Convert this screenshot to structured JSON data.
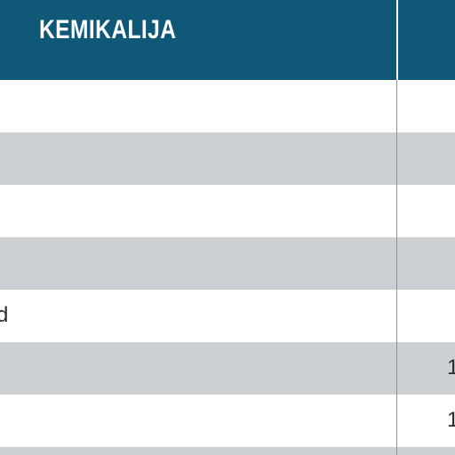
{
  "header": {
    "title": "KEMIKALIJA"
  },
  "colors": {
    "header_bg": "#0f5878",
    "row_white": "#ffffff",
    "row_gray": "#cdd0d3",
    "divider": "#8a8f94"
  },
  "rows": [
    {
      "left": "",
      "right": ""
    },
    {
      "left": "",
      "right": ""
    },
    {
      "left": "",
      "right": ""
    },
    {
      "left": "",
      "right": ""
    },
    {
      "left": "d",
      "right": ""
    },
    {
      "left": "",
      "right": "1"
    },
    {
      "left": "",
      "right": "1"
    },
    {
      "left": "",
      "right": ""
    }
  ]
}
